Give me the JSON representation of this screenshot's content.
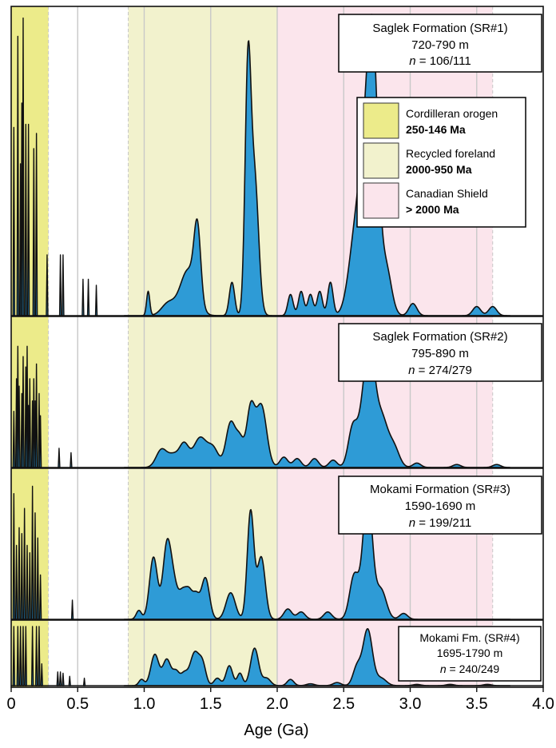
{
  "chart_data": {
    "type": "area",
    "xlabel": "Age (Ga)",
    "xlim": [
      0,
      4.0
    ],
    "x_ticks": [
      "0",
      "0.5",
      "1.0",
      "1.5",
      "2.0",
      "2.5",
      "3.0",
      "3.5",
      "4.0"
    ],
    "grid": true,
    "age_bands": [
      {
        "name": "Cordilleran orogen",
        "range_label": "250-146 Ma",
        "x0": 0.0,
        "x1": 0.28,
        "color": "#eceb8a"
      },
      {
        "name": "Recycled foreland",
        "range_label": "2000-950 Ma",
        "x0": 0.88,
        "x1": 2.0,
        "color": "#f2f2cd"
      },
      {
        "name": "Canadian Shield",
        "range_label": "> 2000 Ma",
        "x0": 2.0,
        "x1": 3.62,
        "color": "#fbe5ec"
      }
    ],
    "panels": [
      {
        "title": "Saglek Formation (SR#1)",
        "depth": "720-790 m",
        "n_label": "n",
        "n_value": "= 106/111",
        "peaks": [
          [
            1.03,
            0.08,
            0.012
          ],
          [
            1.18,
            0.04,
            0.05
          ],
          [
            1.33,
            0.15,
            0.06
          ],
          [
            1.4,
            0.24,
            0.025
          ],
          [
            1.66,
            0.11,
            0.02
          ],
          [
            1.78,
            0.78,
            0.022
          ],
          [
            1.83,
            0.45,
            0.03
          ],
          [
            2.1,
            0.07,
            0.02
          ],
          [
            2.18,
            0.08,
            0.02
          ],
          [
            2.25,
            0.07,
            0.02
          ],
          [
            2.32,
            0.08,
            0.02
          ],
          [
            2.4,
            0.11,
            0.02
          ],
          [
            2.58,
            0.2,
            0.05
          ],
          [
            2.66,
            0.42,
            0.05
          ],
          [
            2.72,
            0.75,
            0.04
          ],
          [
            2.82,
            0.15,
            0.04
          ],
          [
            3.02,
            0.04,
            0.03
          ],
          [
            3.5,
            0.03,
            0.03
          ],
          [
            3.62,
            0.03,
            0.03
          ]
        ],
        "spikes": [
          [
            0.02,
            0.62
          ],
          [
            0.05,
            0.92
          ],
          [
            0.07,
            0.5
          ],
          [
            0.08,
            0.7
          ],
          [
            0.09,
            0.98
          ],
          [
            0.11,
            0.63
          ],
          [
            0.13,
            0.63
          ],
          [
            0.17,
            0.55
          ],
          [
            0.19,
            0.6
          ],
          [
            0.27,
            0.2
          ],
          [
            0.37,
            0.2
          ],
          [
            0.39,
            0.2
          ],
          [
            0.54,
            0.12
          ],
          [
            0.58,
            0.12
          ],
          [
            0.64,
            0.1
          ]
        ]
      },
      {
        "title": "Saglek Formation (SR#2)",
        "depth": "795-890 m",
        "n_label": "n",
        "n_value": "= 274/279",
        "peaks": [
          [
            1.13,
            0.12,
            0.04
          ],
          [
            1.22,
            0.08,
            0.04
          ],
          [
            1.3,
            0.15,
            0.035
          ],
          [
            1.42,
            0.2,
            0.05
          ],
          [
            1.52,
            0.12,
            0.04
          ],
          [
            1.65,
            0.3,
            0.035
          ],
          [
            1.72,
            0.18,
            0.03
          ],
          [
            1.8,
            0.38,
            0.03
          ],
          [
            1.88,
            0.42,
            0.04
          ],
          [
            2.05,
            0.07,
            0.03
          ],
          [
            2.15,
            0.06,
            0.03
          ],
          [
            2.28,
            0.06,
            0.03
          ],
          [
            2.42,
            0.05,
            0.03
          ],
          [
            2.57,
            0.28,
            0.035
          ],
          [
            2.65,
            0.35,
            0.035
          ],
          [
            2.7,
            0.62,
            0.035
          ],
          [
            2.78,
            0.35,
            0.05
          ],
          [
            2.88,
            0.12,
            0.04
          ],
          [
            3.05,
            0.03,
            0.03
          ],
          [
            3.35,
            0.02,
            0.03
          ],
          [
            3.65,
            0.02,
            0.03
          ]
        ],
        "spikes": [
          [
            0.02,
            0.38
          ],
          [
            0.04,
            0.6
          ],
          [
            0.05,
            0.82
          ],
          [
            0.06,
            0.55
          ],
          [
            0.08,
            0.5
          ],
          [
            0.09,
            0.75
          ],
          [
            0.11,
            0.68
          ],
          [
            0.12,
            0.82
          ],
          [
            0.13,
            0.42
          ],
          [
            0.14,
            0.6
          ],
          [
            0.16,
            0.45
          ],
          [
            0.17,
            0.6
          ],
          [
            0.18,
            0.45
          ],
          [
            0.19,
            0.7
          ],
          [
            0.21,
            0.5
          ],
          [
            0.22,
            0.35
          ],
          [
            0.36,
            0.13
          ],
          [
            0.45,
            0.1
          ]
        ]
      },
      {
        "title": "Mokami Formation (SR#3)",
        "depth": "1590-1690 m",
        "n_label": "n",
        "n_value": "= 199/211",
        "peaks": [
          [
            0.96,
            0.06,
            0.02
          ],
          [
            1.07,
            0.42,
            0.03
          ],
          [
            1.17,
            0.48,
            0.03
          ],
          [
            1.22,
            0.22,
            0.03
          ],
          [
            1.29,
            0.18,
            0.03
          ],
          [
            1.34,
            0.15,
            0.025
          ],
          [
            1.39,
            0.15,
            0.025
          ],
          [
            1.46,
            0.28,
            0.03
          ],
          [
            1.65,
            0.18,
            0.035
          ],
          [
            1.8,
            0.73,
            0.025
          ],
          [
            1.88,
            0.42,
            0.03
          ],
          [
            2.08,
            0.07,
            0.03
          ],
          [
            2.18,
            0.05,
            0.03
          ],
          [
            2.38,
            0.05,
            0.03
          ],
          [
            2.58,
            0.3,
            0.035
          ],
          [
            2.68,
            0.85,
            0.035
          ],
          [
            2.78,
            0.2,
            0.04
          ],
          [
            2.95,
            0.04,
            0.03
          ]
        ],
        "spikes": [
          [
            0.02,
            0.85
          ],
          [
            0.04,
            0.5
          ],
          [
            0.06,
            0.62
          ],
          [
            0.08,
            0.58
          ],
          [
            0.1,
            0.75
          ],
          [
            0.12,
            0.5
          ],
          [
            0.14,
            0.45
          ],
          [
            0.16,
            0.9
          ],
          [
            0.18,
            0.72
          ],
          [
            0.2,
            0.55
          ],
          [
            0.22,
            0.3
          ],
          [
            0.46,
            0.13
          ]
        ]
      },
      {
        "title": "Mokami Fm. (SR#4)",
        "depth": "1695-1790 m",
        "n_label": "n",
        "n_value": "= 240/249",
        "peaks": [
          [
            0.98,
            0.1,
            0.02
          ],
          [
            1.08,
            0.5,
            0.03
          ],
          [
            1.17,
            0.42,
            0.03
          ],
          [
            1.24,
            0.22,
            0.025
          ],
          [
            1.3,
            0.18,
            0.025
          ],
          [
            1.38,
            0.53,
            0.035
          ],
          [
            1.44,
            0.3,
            0.025
          ],
          [
            1.55,
            0.12,
            0.025
          ],
          [
            1.64,
            0.32,
            0.025
          ],
          [
            1.72,
            0.2,
            0.02
          ],
          [
            1.83,
            0.6,
            0.03
          ],
          [
            1.92,
            0.12,
            0.03
          ],
          [
            2.1,
            0.1,
            0.025
          ],
          [
            2.25,
            0.03,
            0.03
          ],
          [
            2.45,
            0.05,
            0.03
          ],
          [
            2.6,
            0.3,
            0.03
          ],
          [
            2.68,
            0.9,
            0.035
          ],
          [
            2.78,
            0.12,
            0.04
          ],
          [
            3.05,
            0.02,
            0.03
          ],
          [
            3.3,
            0.02,
            0.03
          ],
          [
            3.58,
            0.02,
            0.03
          ]
        ],
        "spikes": [
          [
            0.02,
            0.95
          ],
          [
            0.05,
            0.95
          ],
          [
            0.07,
            0.95
          ],
          [
            0.09,
            0.95
          ],
          [
            0.11,
            0.95
          ],
          [
            0.16,
            0.95
          ],
          [
            0.19,
            0.95
          ],
          [
            0.21,
            0.95
          ],
          [
            0.23,
            0.35
          ],
          [
            0.35,
            0.22
          ],
          [
            0.37,
            0.22
          ],
          [
            0.39,
            0.2
          ],
          [
            0.44,
            0.15
          ],
          [
            0.55,
            0.12
          ]
        ]
      }
    ]
  }
}
